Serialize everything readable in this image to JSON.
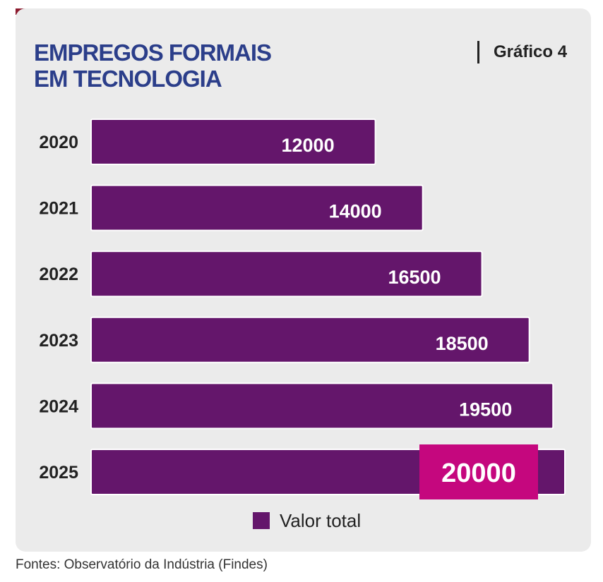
{
  "title_lines": [
    "EMPREGOS FORMAIS",
    "EM TECNOLOGIA"
  ],
  "chart_number": "Gráfico 4",
  "source": "Fontes: Observatório da Indústria (Findes)",
  "colors": {
    "bar": "#64166b",
    "highlight": "#c5077e",
    "title": "#2b3e8a",
    "accent": "#8c1b2e"
  },
  "chart_data": {
    "type": "bar",
    "orientation": "horizontal",
    "categories": [
      "2020",
      "2021",
      "2022",
      "2023",
      "2024",
      "2025"
    ],
    "series": [
      {
        "name": "Valor total",
        "values": [
          12000,
          14000,
          16500,
          18500,
          19500,
          20000
        ]
      }
    ],
    "highlighted_category": "2025",
    "legend": {
      "position": "bottom"
    },
    "grid": false
  }
}
